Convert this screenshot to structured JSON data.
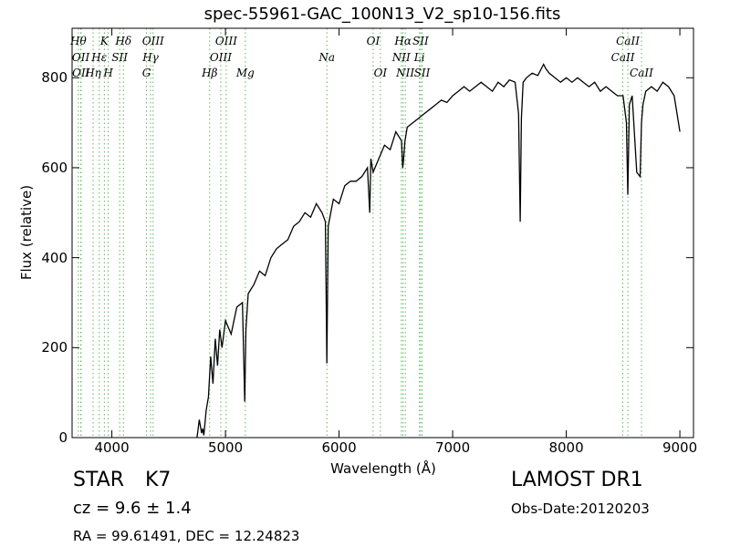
{
  "chart_data": {
    "type": "line",
    "title": "spec-55961-GAC_100N13_V2_sp10-156.fits",
    "xlabel": "Wavelength (Å)",
    "ylabel": "Flux (relative)",
    "xlim": [
      3650,
      9120
    ],
    "ylim": [
      0,
      910
    ],
    "xticks": [
      4000,
      5000,
      6000,
      7000,
      8000,
      9000
    ],
    "yticks": [
      0,
      200,
      400,
      600,
      800
    ],
    "grid": false,
    "series_color": "#000000",
    "line_color": "#5cb85c",
    "lines": [
      {
        "label": "Hθ",
        "x": 3705,
        "row": 0
      },
      {
        "label": "OII",
        "x": 3727,
        "row": 1
      },
      {
        "label": "OII",
        "x": 3729,
        "row": 2
      },
      {
        "label": "Hη",
        "x": 3835,
        "row": 2
      },
      {
        "label": "Hε",
        "x": 3889,
        "row": 1
      },
      {
        "label": "K",
        "x": 3934,
        "row": 0
      },
      {
        "label": "H",
        "x": 3968,
        "row": 2
      },
      {
        "label": "SII",
        "x": 4069,
        "row": 1
      },
      {
        "label": "Hδ",
        "x": 4102,
        "row": 0
      },
      {
        "label": "G",
        "x": 4305,
        "row": 2
      },
      {
        "label": "Hγ",
        "x": 4341,
        "row": 1
      },
      {
        "label": "OIII",
        "x": 4363,
        "row": 0
      },
      {
        "label": "Hβ",
        "x": 4861,
        "row": 2
      },
      {
        "label": "OIII",
        "x": 4959,
        "row": 1
      },
      {
        "label": "OIII",
        "x": 5007,
        "row": 0
      },
      {
        "label": "Mg",
        "x": 5175,
        "row": 2
      },
      {
        "label": "Na",
        "x": 5893,
        "row": 1
      },
      {
        "label": "OI",
        "x": 6300,
        "row": 0
      },
      {
        "label": "OI",
        "x": 6364,
        "row": 2
      },
      {
        "label": "NII",
        "x": 6548,
        "row": 1
      },
      {
        "label": "Hα",
        "x": 6563,
        "row": 0
      },
      {
        "label": "NII",
        "x": 6583,
        "row": 2
      },
      {
        "label": "Li",
        "x": 6708,
        "row": 1
      },
      {
        "label": "SII",
        "x": 6717,
        "row": 0
      },
      {
        "label": "SII",
        "x": 6731,
        "row": 2
      },
      {
        "label": "CaII",
        "x": 8498,
        "row": 1
      },
      {
        "label": "CaII",
        "x": 8542,
        "row": 0
      },
      {
        "label": "CaII",
        "x": 8662,
        "row": 2
      }
    ],
    "series": [
      {
        "x": [
          4750,
          4770,
          4790,
          4800,
          4810,
          4830,
          4850,
          4870,
          4890,
          4910,
          4930,
          4950,
          4970,
          5000,
          5050,
          5100,
          5150,
          5170,
          5180,
          5200,
          5250,
          5300,
          5350,
          5400,
          5450,
          5500,
          5550,
          5600,
          5650,
          5700,
          5750,
          5800,
          5850,
          5880,
          5893,
          5905,
          5950,
          6000,
          6050,
          6100,
          6150,
          6200,
          6250,
          6270,
          6280,
          6300,
          6350,
          6400,
          6450,
          6500,
          6550,
          6560,
          6565,
          6580,
          6600,
          6650,
          6700,
          6750,
          6800,
          6850,
          6900,
          6950,
          7000,
          7050,
          7100,
          7150,
          7200,
          7250,
          7300,
          7350,
          7400,
          7450,
          7500,
          7550,
          7580,
          7595,
          7605,
          7620,
          7650,
          7700,
          7750,
          7800,
          7820,
          7850,
          7900,
          7950,
          8000,
          8050,
          8100,
          8150,
          8200,
          8250,
          8300,
          8350,
          8400,
          8450,
          8500,
          8530,
          8542,
          8555,
          8580,
          8620,
          8650,
          8662,
          8675,
          8700,
          8750,
          8800,
          8850,
          8900,
          8950,
          9000
        ],
        "y": [
          0,
          40,
          10,
          20,
          5,
          60,
          90,
          180,
          120,
          220,
          160,
          240,
          200,
          260,
          230,
          290,
          300,
          80,
          240,
          320,
          340,
          370,
          360,
          400,
          420,
          430,
          440,
          470,
          480,
          500,
          490,
          520,
          500,
          480,
          165,
          470,
          530,
          520,
          560,
          570,
          570,
          580,
          600,
          500,
          620,
          590,
          620,
          650,
          640,
          680,
          660,
          600,
          610,
          660,
          690,
          700,
          710,
          720,
          730,
          740,
          750,
          745,
          760,
          770,
          780,
          770,
          780,
          790,
          780,
          770,
          790,
          780,
          795,
          790,
          720,
          480,
          710,
          790,
          800,
          810,
          805,
          830,
          820,
          810,
          800,
          790,
          800,
          790,
          800,
          790,
          780,
          790,
          770,
          780,
          770,
          760,
          760,
          700,
          540,
          740,
          760,
          590,
          580,
          700,
          740,
          770,
          780,
          770,
          790,
          780,
          760,
          680
        ]
      }
    ]
  },
  "info": {
    "class_label": "STAR",
    "subclass": "K7",
    "survey": "LAMOST DR1",
    "cz_text": "cz = 9.6 ± 1.4",
    "obs_date": "Obs-Date:20120203",
    "radec": "RA = 99.61491, DEC = 12.24823"
  }
}
